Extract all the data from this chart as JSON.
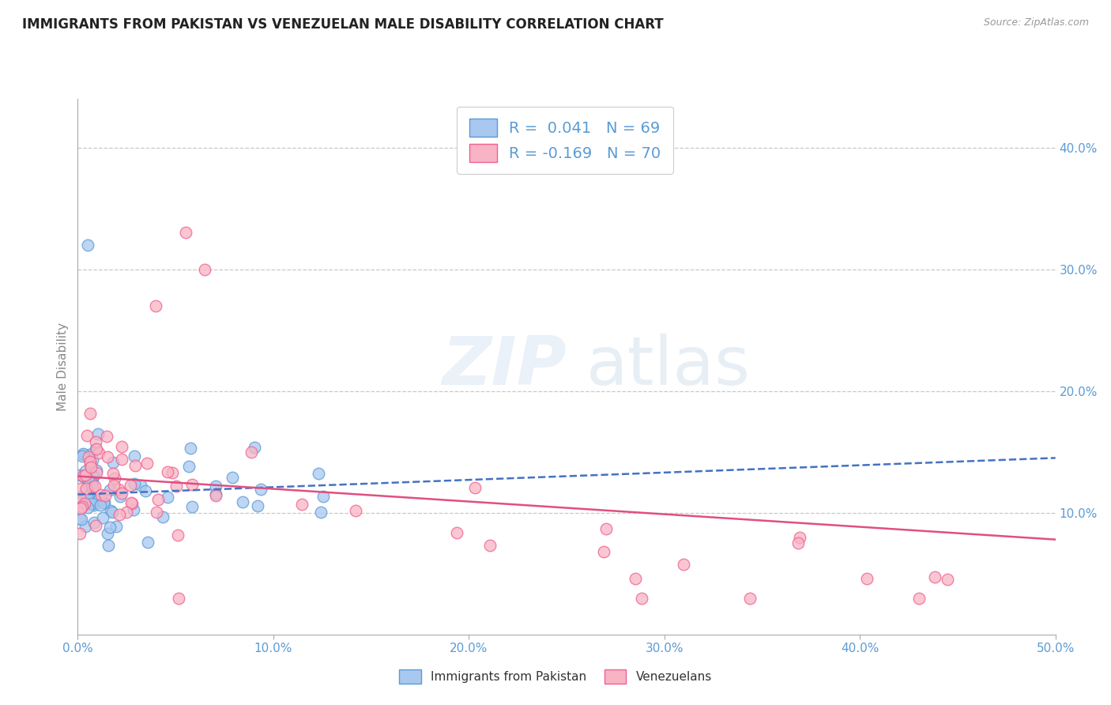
{
  "title": "IMMIGRANTS FROM PAKISTAN VS VENEZUELAN MALE DISABILITY CORRELATION CHART",
  "source_text": "Source: ZipAtlas.com",
  "ylabel": "Male Disability",
  "x_min": 0.0,
  "x_max": 0.5,
  "y_min": 0.0,
  "y_max": 0.44,
  "x_ticks": [
    0.0,
    0.1,
    0.2,
    0.3,
    0.4,
    0.5
  ],
  "x_tick_labels": [
    "0.0%",
    "10.0%",
    "20.0%",
    "30.0%",
    "40.0%",
    "50.0%"
  ],
  "y_ticks_right": [
    0.1,
    0.2,
    0.3,
    0.4
  ],
  "y_tick_labels_right": [
    "10.0%",
    "20.0%",
    "30.0%",
    "40.0%"
  ],
  "color_pakistan": "#a8c8f0",
  "color_pakistan_edge": "#5b9bd5",
  "color_venezuela": "#f8b4c4",
  "color_venezuela_edge": "#f06090",
  "color_trendline_pakistan": "#4472c4",
  "color_trendline_venezuela": "#e05080",
  "R_pakistan": 0.041,
  "N_pakistan": 69,
  "R_venezuela": -0.169,
  "N_venezuela": 70,
  "legend_label_pakistan": "Immigrants from Pakistan",
  "legend_label_venezuela": "Venezuelans",
  "background_color": "#ffffff",
  "grid_color": "#c8c8c8",
  "title_color": "#222222",
  "axis_label_color": "#5b9bd5",
  "ylabel_color": "#888888"
}
